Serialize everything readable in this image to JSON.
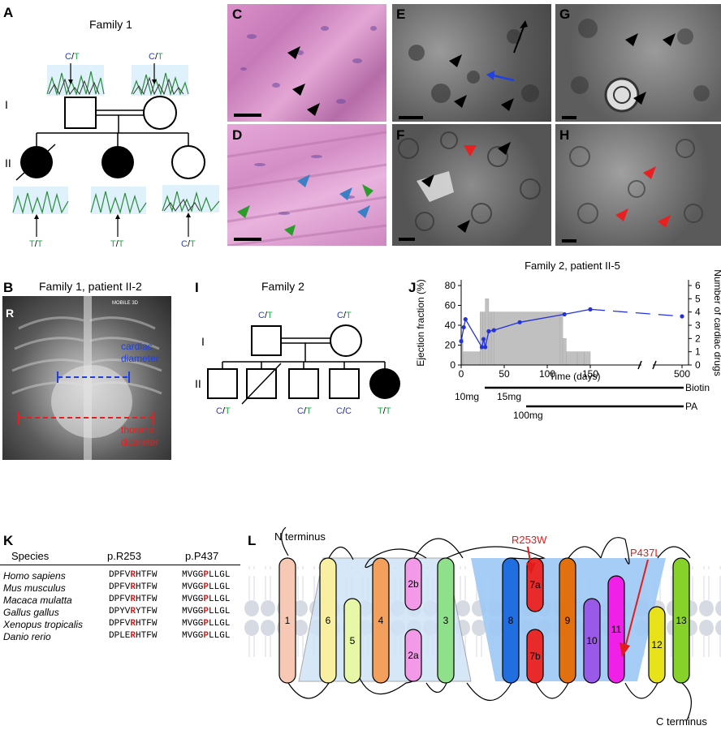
{
  "panels": {
    "A": {
      "letter": "A",
      "title": "Family 1",
      "gen_I": "I",
      "gen_II": "II",
      "genotypes": {
        "I1": {
          "a": "C",
          "b": "T"
        },
        "I2": {
          "a": "C",
          "b": "T"
        },
        "II1": {
          "a": "T",
          "b": "T"
        },
        "II2": {
          "a": "T",
          "b": "T"
        },
        "II3": {
          "a": "C",
          "b": "T"
        }
      }
    },
    "B": {
      "letter": "B",
      "title": "Family 1, patient II-2",
      "cardiac": "cardiac diameter",
      "thoracic": "thoracic diameter",
      "marker": "R",
      "corner_text": "MOBILE 3D"
    },
    "C": {
      "letter": "C"
    },
    "D": {
      "letter": "D"
    },
    "E": {
      "letter": "E"
    },
    "F": {
      "letter": "F"
    },
    "G": {
      "letter": "G"
    },
    "H": {
      "letter": "H"
    },
    "I": {
      "letter": "I",
      "title": "Family 2",
      "gen_I": "I",
      "gen_II": "II",
      "genotypes": {
        "I1": {
          "a": "C",
          "b": "T"
        },
        "I2": {
          "a": "C",
          "b": "T"
        },
        "II1": {
          "a": "C",
          "b": "T"
        },
        "II3": {
          "a": "C",
          "b": "T"
        },
        "II4": {
          "a": "C",
          "b": "C"
        },
        "II5": {
          "a": "T",
          "b": "T"
        }
      }
    },
    "J": {
      "letter": "J",
      "drug_labels": {
        "biotin": "Biotin",
        "pa": "PA",
        "dose1": "10mg",
        "dose2": "15mg",
        "dose3": "100mg"
      }
    },
    "K": {
      "letter": "K",
      "headers": {
        "species": "Species",
        "r253": "p.R253",
        "p437": "p.P437"
      },
      "rows": [
        {
          "species": "Homo sapiens",
          "s1": "DPFV",
          "r": "R",
          "s2": "HTFW",
          "p1": "MVGG",
          "p": "P",
          "p2": "LLGL"
        },
        {
          "species": "Mus musculus",
          "s1": "DPFV",
          "r": "R",
          "s2": "HTFW",
          "p1": "MVGG",
          "p": "P",
          "p2": "LLGL"
        },
        {
          "species": "Macaca mulatta",
          "s1": "DPFV",
          "r": "R",
          "s2": "HTFW",
          "p1": "MVGG",
          "p": "P",
          "p2": "LLGL"
        },
        {
          "species": "Gallus gallus",
          "s1": "DPYV",
          "r": "R",
          "s2": "YTFW",
          "p1": "MVGG",
          "p": "P",
          "p2": "LLGL"
        },
        {
          "species": "Xenopus tropicalis",
          "s1": "DPFV",
          "r": "R",
          "s2": "HTFW",
          "p1": "MVGG",
          "p": "P",
          "p2": "LLGL"
        },
        {
          "species": "Danio rerio",
          "s1": "DPLE",
          "r": "R",
          "s2": "HTFW",
          "p1": "MVGG",
          "p": "P",
          "p2": "LLGL"
        }
      ]
    },
    "L": {
      "letter": "L",
      "n_term": "N terminus",
      "c_term": "C terminus",
      "mut1": "R253W",
      "mut2": "P437L",
      "helices": [
        "1",
        "6",
        "5",
        "4",
        "2b",
        "2a",
        "3",
        "8",
        "7a",
        "7b",
        "9",
        "10",
        "11",
        "12",
        "13"
      ]
    }
  },
  "colors": {
    "c_allele": "#2b3fbf",
    "t_allele": "#1fa84a",
    "mutation": "#e21b1b",
    "line_blue": "#2432d8",
    "bar_gray": "#c0c0c0"
  },
  "chart_data": {
    "type": "line",
    "title": "Family 2, patient II-5",
    "xlabel": "Time (days)",
    "ylabel": "Ejection fraction (%)",
    "y2label": "Number of cardiac drugs",
    "xlim": [
      0,
      500
    ],
    "x_ticks": [
      "0",
      "50",
      "100",
      "150",
      "500"
    ],
    "ylim": [
      0,
      80
    ],
    "y_ticks": [
      "0",
      "20",
      "40",
      "60",
      "80"
    ],
    "y2lim": [
      0,
      6
    ],
    "y2_ticks": [
      "0",
      "1",
      "2",
      "3",
      "4",
      "5",
      "6"
    ],
    "axis_break": "between 180 and 500",
    "series": [
      {
        "type": "line",
        "x": [
          0,
          3,
          5,
          24,
          26,
          28,
          32,
          38,
          68,
          120,
          150,
          500
        ],
        "y": [
          24,
          38,
          46,
          18,
          26,
          18,
          34,
          35,
          43,
          51,
          56,
          49
        ]
      },
      {
        "type": "bar",
        "x": [
          0,
          2,
          22,
          25,
          28,
          32,
          35,
          38,
          115,
          118,
          122,
          135,
          143
        ],
        "y": [
          2,
          1,
          4,
          4,
          5,
          4,
          4,
          4,
          4,
          2,
          1,
          1,
          1
        ]
      }
    ]
  }
}
